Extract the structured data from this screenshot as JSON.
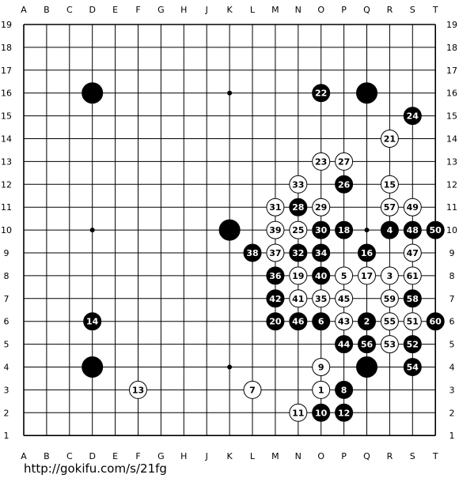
{
  "board": {
    "size": 19,
    "columns": [
      "A",
      "B",
      "C",
      "D",
      "E",
      "F",
      "G",
      "H",
      "J",
      "K",
      "L",
      "M",
      "N",
      "O",
      "P",
      "Q",
      "R",
      "S",
      "T"
    ],
    "rows": [
      "1",
      "2",
      "3",
      "4",
      "5",
      "6",
      "7",
      "8",
      "9",
      "10",
      "11",
      "12",
      "13",
      "14",
      "15",
      "16",
      "17",
      "18",
      "19"
    ],
    "hoshi": [
      "D4",
      "K4",
      "Q4",
      "D10",
      "K10",
      "Q10",
      "D16",
      "K16",
      "Q16"
    ],
    "stones": [
      {
        "pos": "D16",
        "color": "black",
        "label": ""
      },
      {
        "pos": "Q16",
        "color": "black",
        "label": ""
      },
      {
        "pos": "K10",
        "color": "black",
        "label": ""
      },
      {
        "pos": "D4",
        "color": "black",
        "label": ""
      },
      {
        "pos": "Q4",
        "color": "black",
        "label": ""
      },
      {
        "pos": "O3",
        "color": "white",
        "label": "1"
      },
      {
        "pos": "Q6",
        "color": "black",
        "label": "2"
      },
      {
        "pos": "R8",
        "color": "white",
        "label": "3"
      },
      {
        "pos": "R10",
        "color": "black",
        "label": "4"
      },
      {
        "pos": "P8",
        "color": "white",
        "label": "5"
      },
      {
        "pos": "O6",
        "color": "black",
        "label": "6"
      },
      {
        "pos": "L3",
        "color": "white",
        "label": "7"
      },
      {
        "pos": "P3",
        "color": "black",
        "label": "8"
      },
      {
        "pos": "O4",
        "color": "white",
        "label": "9"
      },
      {
        "pos": "O2",
        "color": "black",
        "label": "10"
      },
      {
        "pos": "N2",
        "color": "white",
        "label": "11"
      },
      {
        "pos": "P2",
        "color": "black",
        "label": "12"
      },
      {
        "pos": "F3",
        "color": "white",
        "label": "13"
      },
      {
        "pos": "D6",
        "color": "black",
        "label": "14"
      },
      {
        "pos": "R12",
        "color": "white",
        "label": "15"
      },
      {
        "pos": "Q9",
        "color": "black",
        "label": "16"
      },
      {
        "pos": "Q8",
        "color": "white",
        "label": "17"
      },
      {
        "pos": "P10",
        "color": "black",
        "label": "18"
      },
      {
        "pos": "N8",
        "color": "white",
        "label": "19"
      },
      {
        "pos": "M6",
        "color": "black",
        "label": "20"
      },
      {
        "pos": "R14",
        "color": "white",
        "label": "21"
      },
      {
        "pos": "O16",
        "color": "black",
        "label": "22"
      },
      {
        "pos": "O13",
        "color": "white",
        "label": "23"
      },
      {
        "pos": "S15",
        "color": "black",
        "label": "24"
      },
      {
        "pos": "N10",
        "color": "white",
        "label": "25"
      },
      {
        "pos": "P12",
        "color": "black",
        "label": "26"
      },
      {
        "pos": "P13",
        "color": "white",
        "label": "27"
      },
      {
        "pos": "N11",
        "color": "black",
        "label": "28"
      },
      {
        "pos": "O11",
        "color": "white",
        "label": "29"
      },
      {
        "pos": "O10",
        "color": "black",
        "label": "30"
      },
      {
        "pos": "M11",
        "color": "white",
        "label": "31"
      },
      {
        "pos": "N9",
        "color": "black",
        "label": "32"
      },
      {
        "pos": "N12",
        "color": "white",
        "label": "33"
      },
      {
        "pos": "O9",
        "color": "black",
        "label": "34"
      },
      {
        "pos": "O7",
        "color": "white",
        "label": "35"
      },
      {
        "pos": "M8",
        "color": "black",
        "label": "36"
      },
      {
        "pos": "M9",
        "color": "white",
        "label": "37"
      },
      {
        "pos": "L9",
        "color": "black",
        "label": "38"
      },
      {
        "pos": "M10",
        "color": "white",
        "label": "39"
      },
      {
        "pos": "O8",
        "color": "black",
        "label": "40"
      },
      {
        "pos": "N7",
        "color": "white",
        "label": "41"
      },
      {
        "pos": "M7",
        "color": "black",
        "label": "42"
      },
      {
        "pos": "P6",
        "color": "white",
        "label": "43"
      },
      {
        "pos": "P5",
        "color": "black",
        "label": "44"
      },
      {
        "pos": "P7",
        "color": "white",
        "label": "45"
      },
      {
        "pos": "N6",
        "color": "black",
        "label": "46"
      },
      {
        "pos": "S9",
        "color": "white",
        "label": "47"
      },
      {
        "pos": "S10",
        "color": "black",
        "label": "48"
      },
      {
        "pos": "S11",
        "color": "white",
        "label": "49"
      },
      {
        "pos": "T10",
        "color": "black",
        "label": "50"
      },
      {
        "pos": "S6",
        "color": "white",
        "label": "51"
      },
      {
        "pos": "S5",
        "color": "black",
        "label": "52"
      },
      {
        "pos": "R5",
        "color": "white",
        "label": "53"
      },
      {
        "pos": "S4",
        "color": "black",
        "label": "54"
      },
      {
        "pos": "R6",
        "color": "white",
        "label": "55"
      },
      {
        "pos": "Q5",
        "color": "black",
        "label": "56"
      },
      {
        "pos": "R11",
        "color": "white",
        "label": "57"
      },
      {
        "pos": "S7",
        "color": "black",
        "label": "58"
      },
      {
        "pos": "R7",
        "color": "white",
        "label": "59"
      },
      {
        "pos": "T6",
        "color": "black",
        "label": "60"
      },
      {
        "pos": "S8",
        "color": "white",
        "label": "61"
      }
    ]
  },
  "footer": {
    "url": "http://gokifu.com/s/21fg"
  }
}
